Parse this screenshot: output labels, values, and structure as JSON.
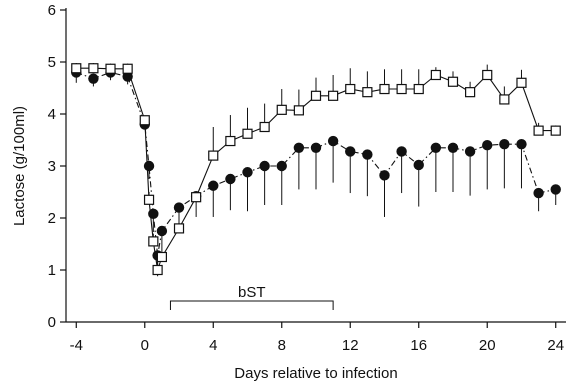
{
  "chart_data": {
    "type": "line",
    "title": "",
    "xlabel": "Days relative to infection",
    "ylabel": "Lactose (g/100ml)",
    "xlim": [
      -4.6,
      24.6
    ],
    "ylim": [
      0,
      6
    ],
    "xticks": [
      -4,
      0,
      4,
      8,
      12,
      16,
      20,
      24
    ],
    "yticks": [
      0,
      1,
      2,
      3,
      4,
      5,
      6
    ],
    "grid": false,
    "legend": "none",
    "annotations": [
      {
        "text": "bST",
        "x_start": 1.5,
        "x_end": 11
      }
    ],
    "series": [
      {
        "marker": "open-square",
        "line": "solid",
        "color": "#111111",
        "points": [
          {
            "x": -4,
            "y": 4.88,
            "err": 0.1
          },
          {
            "x": -3,
            "y": 4.88,
            "err": 0.1
          },
          {
            "x": -2,
            "y": 4.87,
            "err": 0.1
          },
          {
            "x": -1,
            "y": 4.87,
            "err": 0.1
          },
          {
            "x": 0,
            "y": 3.88,
            "err": 0.05
          },
          {
            "x": 0.25,
            "y": 2.35,
            "err": 0.15
          },
          {
            "x": 0.5,
            "y": 1.55,
            "err": 0.15
          },
          {
            "x": 0.75,
            "y": 1.0,
            "err": 0.2
          },
          {
            "x": 1,
            "y": 1.25,
            "err": 0.1
          },
          {
            "x": 2,
            "y": 1.8,
            "err": 0.1
          },
          {
            "x": 3,
            "y": 2.4,
            "err": 0.1
          },
          {
            "x": 4,
            "y": 3.2,
            "err": 0.55
          },
          {
            "x": 5,
            "y": 3.48,
            "err": 0.5
          },
          {
            "x": 6,
            "y": 3.62,
            "err": 0.5
          },
          {
            "x": 7,
            "y": 3.75,
            "err": 0.45
          },
          {
            "x": 8,
            "y": 4.08,
            "err": 0.4
          },
          {
            "x": 9,
            "y": 4.07,
            "err": 0.4
          },
          {
            "x": 10,
            "y": 4.35,
            "err": 0.35
          },
          {
            "x": 11,
            "y": 4.35,
            "err": 0.4
          },
          {
            "x": 12,
            "y": 4.48,
            "err": 0.4
          },
          {
            "x": 13,
            "y": 4.42,
            "err": 0.4
          },
          {
            "x": 14,
            "y": 4.48,
            "err": 0.38
          },
          {
            "x": 15,
            "y": 4.48,
            "err": 0.38
          },
          {
            "x": 16,
            "y": 4.48,
            "err": 0.38
          },
          {
            "x": 17,
            "y": 4.75,
            "err": 0.15
          },
          {
            "x": 18,
            "y": 4.62,
            "err": 0.2
          },
          {
            "x": 19,
            "y": 4.42,
            "err": 0.2
          },
          {
            "x": 20,
            "y": 4.75,
            "err": 0.2
          },
          {
            "x": 21,
            "y": 4.28,
            "err": 0.25
          },
          {
            "x": 22,
            "y": 4.6,
            "err": 0.25
          },
          {
            "x": 23,
            "y": 3.68,
            "err": 0.15
          },
          {
            "x": 24,
            "y": 3.68,
            "err": 0.1
          }
        ]
      },
      {
        "marker": "filled-circle",
        "line": "dash-dot",
        "color": "#111111",
        "points": [
          {
            "x": -4,
            "y": 4.8,
            "err": 0.2
          },
          {
            "x": -3,
            "y": 4.68,
            "err": 0.15
          },
          {
            "x": -2,
            "y": 4.8,
            "err": 0.15
          },
          {
            "x": -1,
            "y": 4.72,
            "err": 0.15
          },
          {
            "x": 0,
            "y": 3.8,
            "err": 0.1
          },
          {
            "x": 0.25,
            "y": 3.0,
            "err": 0.25
          },
          {
            "x": 0.5,
            "y": 2.08,
            "err": 0.35
          },
          {
            "x": 0.75,
            "y": 1.28,
            "err": 0.4
          },
          {
            "x": 1,
            "y": 1.75,
            "err": 0.4
          },
          {
            "x": 2,
            "y": 2.2,
            "err": 0.4
          },
          {
            "x": 3,
            "y": 2.42,
            "err": 0.4
          },
          {
            "x": 4,
            "y": 2.62,
            "err": 0.6
          },
          {
            "x": 5,
            "y": 2.75,
            "err": 0.6
          },
          {
            "x": 6,
            "y": 2.88,
            "err": 0.75
          },
          {
            "x": 7,
            "y": 3.0,
            "err": 0.75
          },
          {
            "x": 8,
            "y": 3.0,
            "err": 0.75
          },
          {
            "x": 9,
            "y": 3.35,
            "err": 0.8
          },
          {
            "x": 10,
            "y": 3.35,
            "err": 0.8
          },
          {
            "x": 11,
            "y": 3.48,
            "err": 0.8
          },
          {
            "x": 12,
            "y": 3.28,
            "err": 0.8
          },
          {
            "x": 13,
            "y": 3.22,
            "err": 0.8
          },
          {
            "x": 14,
            "y": 2.82,
            "err": 0.8
          },
          {
            "x": 15,
            "y": 3.28,
            "err": 0.8
          },
          {
            "x": 16,
            "y": 3.02,
            "err": 0.8
          },
          {
            "x": 17,
            "y": 3.35,
            "err": 0.85
          },
          {
            "x": 18,
            "y": 3.35,
            "err": 0.85
          },
          {
            "x": 19,
            "y": 3.28,
            "err": 0.85
          },
          {
            "x": 20,
            "y": 3.4,
            "err": 0.85
          },
          {
            "x": 21,
            "y": 3.42,
            "err": 0.85
          },
          {
            "x": 22,
            "y": 3.42,
            "err": 0.85
          },
          {
            "x": 23,
            "y": 2.48,
            "err": 0.35
          },
          {
            "x": 24,
            "y": 2.55,
            "err": 0.3
          }
        ]
      }
    ]
  }
}
